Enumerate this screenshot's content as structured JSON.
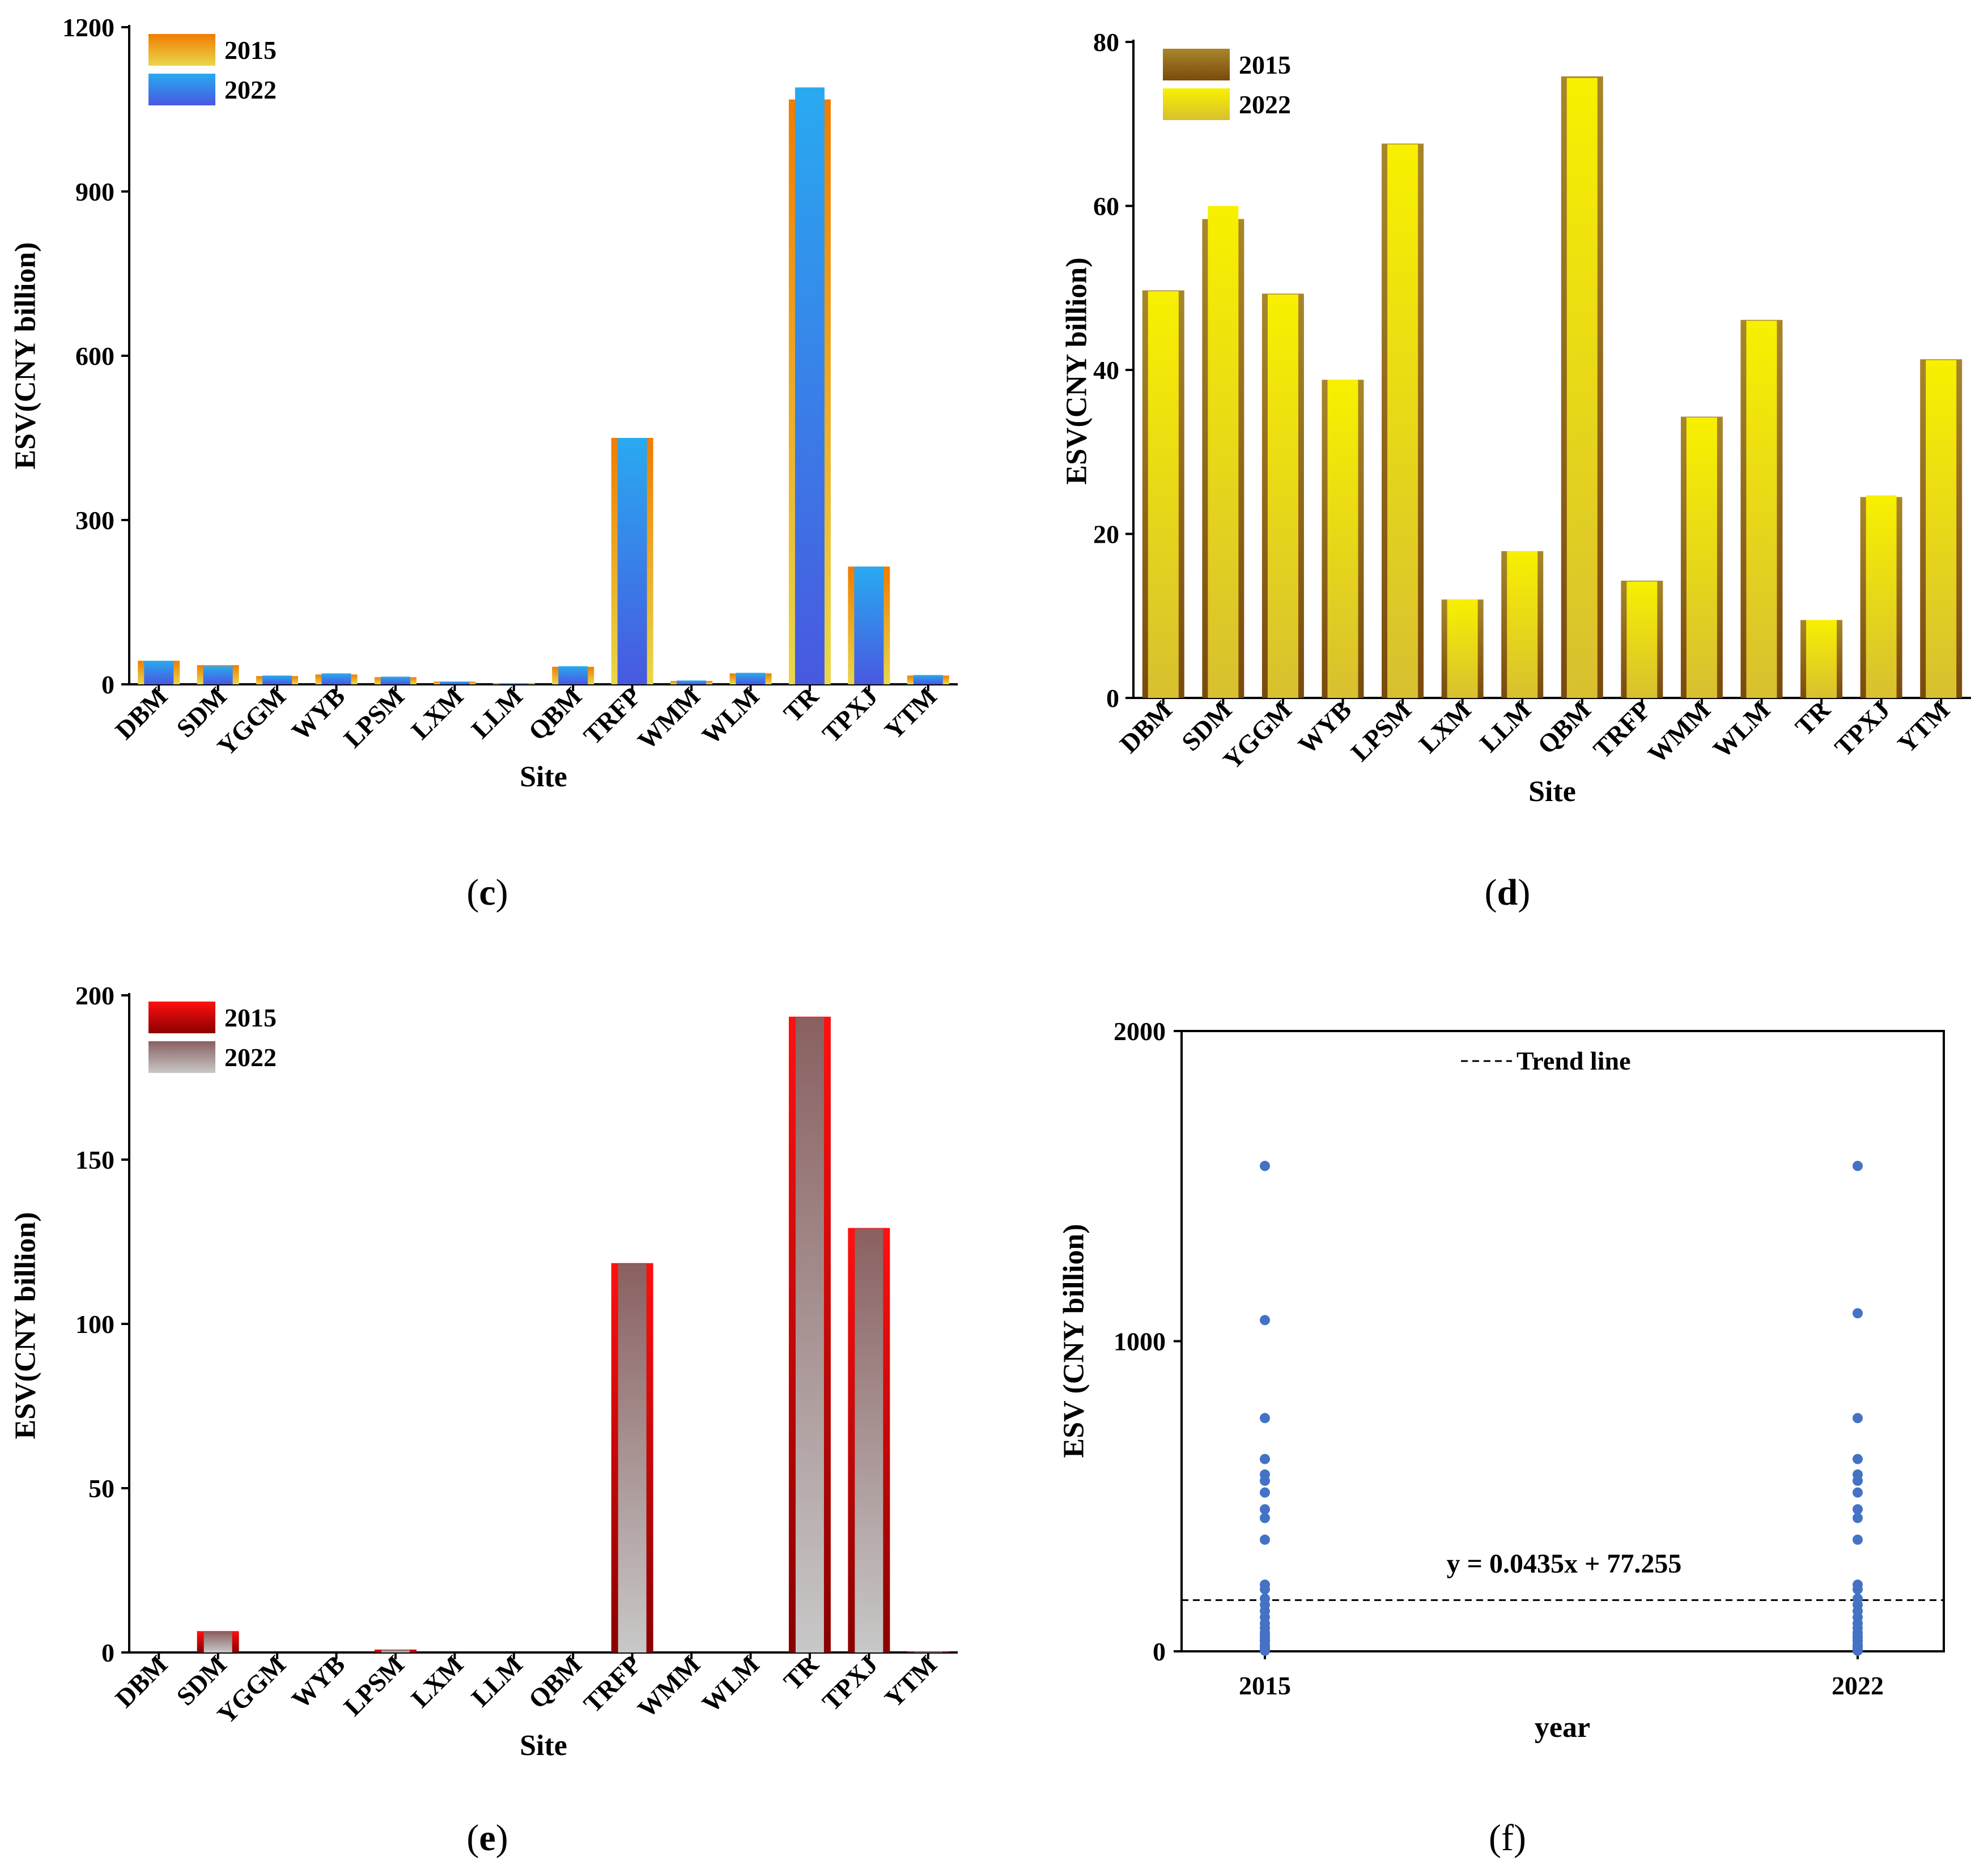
{
  "chart_data": [
    {
      "id": "c",
      "type": "bar",
      "panel_label": "c",
      "xlabel": "Site",
      "ylabel": "ESV(CNY billion)",
      "ylim": [
        0,
        1200
      ],
      "yticks": [
        0,
        300,
        600,
        900,
        1200
      ],
      "categories": [
        "DBM",
        "SDM",
        "YGGM",
        "WYB",
        "LPSM",
        "LXM",
        "LLM",
        "QBM",
        "TRFP",
        "WMM",
        "WLM",
        "TR",
        "TPXJ",
        "YTM"
      ],
      "series": [
        {
          "name": "2015",
          "values": [
            43,
            35,
            15,
            18,
            13,
            5,
            2,
            32,
            450,
            6,
            20,
            1068,
            215,
            16
          ],
          "color_top": "#f07c00",
          "color_bottom": "#e8d84a"
        },
        {
          "name": "2022",
          "values": [
            43,
            33,
            16,
            20,
            14,
            5,
            2,
            33,
            450,
            7,
            21,
            1090,
            215,
            17
          ],
          "color_top": "#29aaf0",
          "color_bottom": "#4858e0"
        }
      ],
      "legend_position": "top-left"
    },
    {
      "id": "d",
      "type": "bar",
      "panel_label": "d",
      "xlabel": "Site",
      "ylabel": "ESV(CNY billion)",
      "ylim": [
        0,
        80
      ],
      "yticks": [
        0,
        20,
        40,
        60,
        80
      ],
      "categories": [
        "DBM",
        "SDM",
        "YGGM",
        "WYB",
        "LPSM",
        "LXM",
        "LLM",
        "QBM",
        "TRFP",
        "WMM",
        "WLM",
        "TR",
        "TPXJ",
        "YTM"
      ],
      "series": [
        {
          "name": "2015",
          "values": [
            49.7,
            58.4,
            49.3,
            38.8,
            67.6,
            12.0,
            17.9,
            75.8,
            14.3,
            34.3,
            46.1,
            9.5,
            24.5,
            41.3
          ],
          "color_top": "#a8862a",
          "color_bottom": "#7a4a0c"
        },
        {
          "name": "2022",
          "values": [
            49.6,
            60.0,
            49.2,
            38.8,
            67.5,
            12.0,
            17.9,
            75.6,
            14.2,
            34.2,
            46.0,
            9.5,
            24.7,
            41.2
          ],
          "color_top": "#f8f000",
          "color_bottom": "#d8c030"
        }
      ],
      "legend_position": "top-left"
    },
    {
      "id": "e",
      "type": "bar",
      "panel_label": "e",
      "xlabel": "Site",
      "ylabel": "ESV(CNY billion)",
      "ylim": [
        0,
        200
      ],
      "yticks": [
        0,
        50,
        100,
        150,
        200
      ],
      "categories": [
        "DBM",
        "SDM",
        "YGGM",
        "WYB",
        "LPSM",
        "LXM",
        "LLM",
        "QBM",
        "TRFP",
        "WMM",
        "WLM",
        "TR",
        "TPXJ",
        "YTM"
      ],
      "series": [
        {
          "name": "2015",
          "values": [
            0,
            6.5,
            0,
            0,
            0.9,
            0,
            0,
            0,
            118.5,
            0,
            0,
            193.5,
            129.2,
            0.3
          ],
          "color_top": "#ff1010",
          "color_bottom": "#8a0000"
        },
        {
          "name": "2022",
          "values": [
            0,
            6.3,
            0,
            0,
            0.8,
            0,
            0,
            0,
            118.3,
            0,
            0,
            193.3,
            129.0,
            0.2
          ],
          "color_top": "#8a6060",
          "color_bottom": "#c8c8c8"
        }
      ],
      "legend_position": "top-left"
    },
    {
      "id": "f",
      "type": "scatter",
      "panel_label": "f",
      "xlabel": "year",
      "ylabel": "ESV (CNY billion)",
      "ylim": [
        0,
        2000
      ],
      "yticks": [
        0,
        1000,
        2000
      ],
      "xticks": [
        "2015",
        "2022"
      ],
      "series": [
        {
          "name": "2015",
          "x": "2015",
          "values": [
            1565,
            1068,
            752,
            620,
            570,
            550,
            512,
            458,
            430,
            360,
            215,
            200,
            170,
            150,
            130,
            110,
            90,
            75,
            60,
            50,
            43,
            35,
            32,
            20,
            18,
            16,
            15,
            13,
            6,
            5,
            2
          ]
        },
        {
          "name": "2022",
          "x": "2022",
          "values": [
            1565,
            1090,
            752,
            620,
            570,
            550,
            512,
            458,
            430,
            360,
            215,
            200,
            170,
            150,
            130,
            110,
            90,
            75,
            60,
            50,
            43,
            33,
            33,
            21,
            20,
            17,
            16,
            14,
            7,
            5,
            2
          ]
        }
      ],
      "trend_line": {
        "label": "Trend line",
        "equation": "y = 0.0435x + 77.255",
        "value": 165
      },
      "point_color": "#4472c4"
    }
  ]
}
